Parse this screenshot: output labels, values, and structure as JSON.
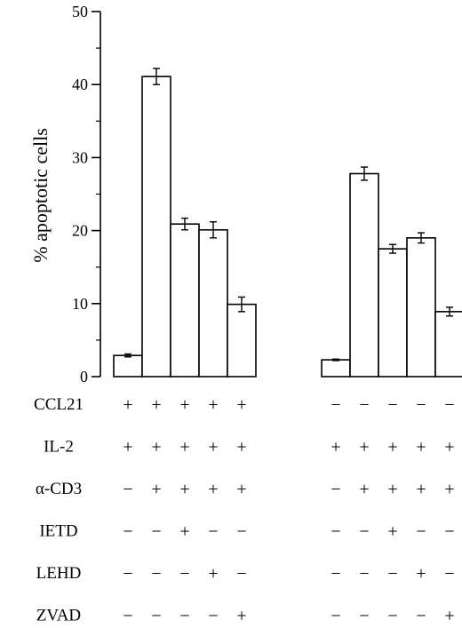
{
  "chart_data": {
    "type": "bar",
    "title": "",
    "xlabel": "",
    "ylabel": "% apoptotic cells",
    "ylim": [
      0,
      50
    ],
    "yticks": [
      0,
      10,
      20,
      30,
      40,
      50
    ],
    "grid": false,
    "groups": [
      {
        "bars": [
          {
            "value": 2.9,
            "error": 0.2,
            "fill": "#ffffff"
          },
          {
            "value": 41.1,
            "error": 1.1,
            "fill": "#ffffff"
          },
          {
            "value": 20.9,
            "error": 0.8,
            "fill": "#ffffff"
          },
          {
            "value": 20.1,
            "error": 1.1,
            "fill": "#ffffff"
          },
          {
            "value": 9.9,
            "error": 1.0,
            "fill": "#ffffff"
          }
        ]
      },
      {
        "bars": [
          {
            "value": 2.3,
            "error": 0.1,
            "fill": "#ffffff"
          },
          {
            "value": 27.8,
            "error": 0.9,
            "fill": "#ffffff"
          },
          {
            "value": 17.5,
            "error": 0.6,
            "fill": "#ffffff"
          },
          {
            "value": 19.0,
            "error": 0.7,
            "fill": "#ffffff"
          },
          {
            "value": 8.9,
            "error": 0.6,
            "fill": "#ffffff"
          }
        ]
      }
    ],
    "condition_rows": [
      {
        "label": "CCL21",
        "signs": [
          [
            "+",
            "+",
            "+",
            "+",
            "+"
          ],
          [
            "−",
            "−",
            "−",
            "−",
            "−"
          ]
        ]
      },
      {
        "label": "IL-2",
        "signs": [
          [
            "+",
            "+",
            "+",
            "+",
            "+"
          ],
          [
            "+",
            "+",
            "+",
            "+",
            "+"
          ]
        ]
      },
      {
        "label": "α-CD3",
        "signs": [
          [
            "−",
            "+",
            "+",
            "+",
            "+"
          ],
          [
            "−",
            "+",
            "+",
            "+",
            "+"
          ]
        ]
      },
      {
        "label": "IETD",
        "signs": [
          [
            "−",
            "−",
            "+",
            "−",
            "−"
          ],
          [
            "−",
            "−",
            "+",
            "−",
            "−"
          ]
        ]
      },
      {
        "label": "LEHD",
        "signs": [
          [
            "−",
            "−",
            "−",
            "+",
            "−"
          ],
          [
            "−",
            "−",
            "−",
            "+",
            "−"
          ]
        ]
      },
      {
        "label": "ZVAD",
        "signs": [
          [
            "−",
            "−",
            "−",
            "−",
            "+"
          ],
          [
            "−",
            "−",
            "−",
            "−",
            "+"
          ]
        ]
      }
    ],
    "colors": {
      "bar_fill": "#ffffff",
      "stroke": "#000000"
    }
  }
}
